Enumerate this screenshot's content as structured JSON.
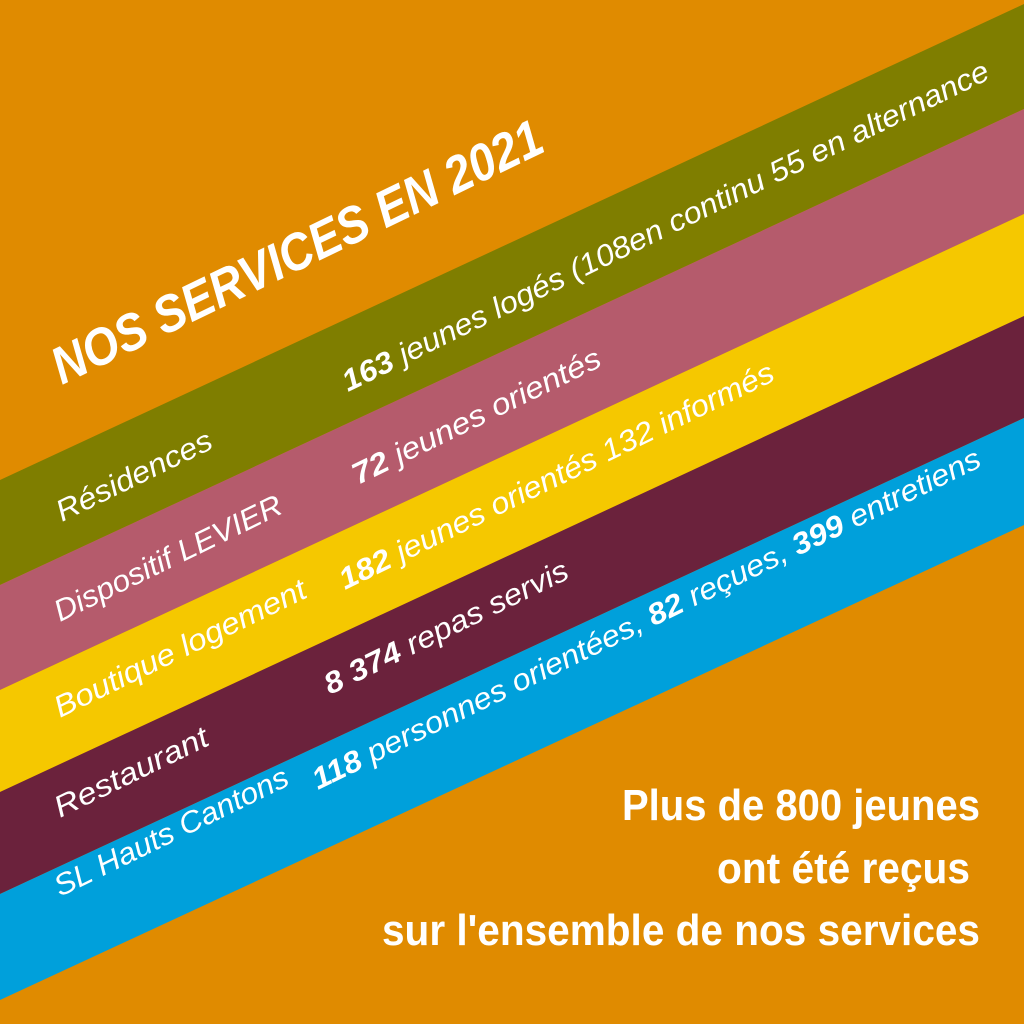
{
  "colors": {
    "background": "#e08b00",
    "residences": "#7f7e00",
    "dispositif": "#b55b6c",
    "boutique": "#f5c800",
    "restaurant": "#6b223c",
    "sl": "#00a0db",
    "text": "#ffffff"
  },
  "title": "NOS SERVICES EN 2021",
  "bands": [
    {
      "label": "Résidences",
      "number": "163",
      "text": " jeunes logés (108en continu 55 en alternance"
    },
    {
      "label": "Dispositif LEVIER",
      "number": "72",
      "text": " jeunes orientés"
    },
    {
      "label": "Boutique logement",
      "number": "182",
      "text": " jeunes orientés 132 informés"
    },
    {
      "label": "Restaurant",
      "number": "8 374",
      "text": " repas servis"
    },
    {
      "label": "SL Hauts Cantons",
      "number": "118",
      "text": " personnes orientées, ",
      "number2": "82",
      "text2": " reçues, ",
      "number3": "399",
      "text3": " entretiens"
    }
  ],
  "summary": [
    "Plus de 800 jeunes",
    "ont été reçus",
    "sur l'ensemble de nos services"
  ]
}
